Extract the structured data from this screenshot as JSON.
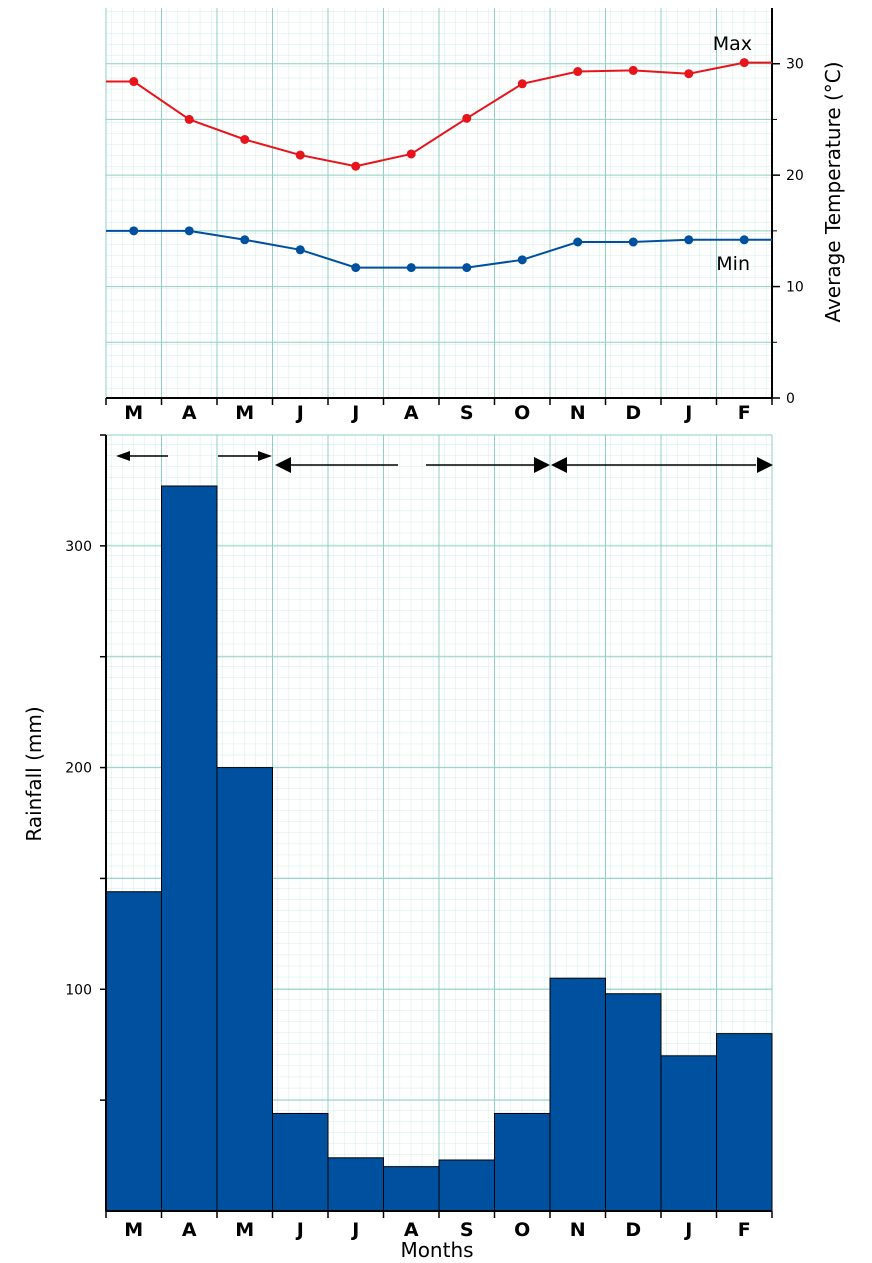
{
  "chart_data": [
    {
      "type": "line",
      "title": "",
      "xlabel": "",
      "ylabel": "Average Temperature (°C)",
      "ylim": [
        0,
        35
      ],
      "yticks": [
        0,
        10,
        20,
        30
      ],
      "grid": true,
      "categories": [
        "M",
        "A",
        "M",
        "J",
        "J",
        "A",
        "S",
        "O",
        "N",
        "D",
        "J",
        "F"
      ],
      "series": [
        {
          "name": "Max",
          "color": "#e8141b",
          "values": [
            28.4,
            25.0,
            23.2,
            21.8,
            20.8,
            21.9,
            25.1,
            28.2,
            29.3,
            29.4,
            29.1,
            30.1
          ]
        },
        {
          "name": "Min",
          "color": "#0050a0",
          "values": [
            15.0,
            15.0,
            14.2,
            13.3,
            11.7,
            11.7,
            11.7,
            12.4,
            14.0,
            14.0,
            14.2,
            14.2
          ]
        }
      ]
    },
    {
      "type": "bar",
      "title": "",
      "xlabel": "Months",
      "ylabel": "Rainfall (mm)",
      "ylim": [
        0,
        350
      ],
      "yticks": [
        100,
        200,
        300
      ],
      "grid": true,
      "bar_color": "#0050a0",
      "categories": [
        "M",
        "A",
        "M",
        "J",
        "J",
        "A",
        "S",
        "O",
        "N",
        "D",
        "J",
        "F"
      ],
      "values": [
        144,
        327,
        200,
        44,
        24,
        20,
        23,
        44,
        105,
        98,
        70,
        80
      ]
    }
  ]
}
